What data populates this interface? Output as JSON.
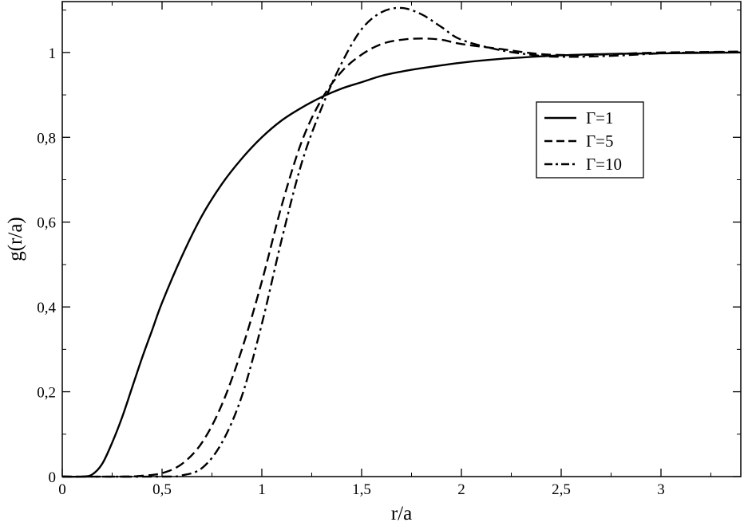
{
  "chart_data": {
    "type": "line",
    "title": "",
    "xlabel": "r/a",
    "ylabel": "g(r/a)",
    "xlim": [
      0,
      3.4
    ],
    "ylim": [
      0,
      1.12
    ],
    "grid": false,
    "legend_position": "upper-right",
    "x_ticks": [
      {
        "value": 0,
        "label": "0"
      },
      {
        "value": 0.5,
        "label": "0,5"
      },
      {
        "value": 1,
        "label": "1"
      },
      {
        "value": 1.5,
        "label": "1,5"
      },
      {
        "value": 2,
        "label": "2"
      },
      {
        "value": 2.5,
        "label": "2,5"
      },
      {
        "value": 3,
        "label": "3"
      }
    ],
    "y_ticks": [
      {
        "value": 0,
        "label": "0"
      },
      {
        "value": 0.2,
        "label": "0,2"
      },
      {
        "value": 0.4,
        "label": "0,4"
      },
      {
        "value": 0.6,
        "label": "0,6"
      },
      {
        "value": 0.8,
        "label": "0,8"
      },
      {
        "value": 1,
        "label": "1"
      }
    ],
    "series": [
      {
        "name": "Γ=1",
        "style": "solid",
        "x": [
          0,
          0.1,
          0.15,
          0.2,
          0.25,
          0.3,
          0.35,
          0.4,
          0.45,
          0.5,
          0.6,
          0.7,
          0.8,
          0.9,
          1.0,
          1.1,
          1.2,
          1.3,
          1.4,
          1.5,
          1.6,
          1.7,
          1.8,
          2.0,
          2.2,
          2.4,
          2.6,
          2.8,
          3.0,
          3.2,
          3.4
        ],
        "y": [
          0,
          0.0,
          0.005,
          0.03,
          0.08,
          0.14,
          0.21,
          0.28,
          0.345,
          0.41,
          0.52,
          0.615,
          0.69,
          0.75,
          0.8,
          0.84,
          0.87,
          0.895,
          0.915,
          0.93,
          0.945,
          0.955,
          0.963,
          0.976,
          0.985,
          0.991,
          0.995,
          0.997,
          0.998,
          0.999,
          1.0
        ]
      },
      {
        "name": "Γ=5",
        "style": "dashed",
        "x": [
          0,
          0.3,
          0.4,
          0.5,
          0.6,
          0.7,
          0.8,
          0.9,
          1.0,
          1.1,
          1.2,
          1.3,
          1.4,
          1.5,
          1.6,
          1.7,
          1.8,
          1.9,
          2.0,
          2.2,
          2.4,
          2.6,
          2.8,
          3.0,
          3.2,
          3.4
        ],
        "y": [
          0,
          0.0,
          0.002,
          0.008,
          0.03,
          0.08,
          0.17,
          0.3,
          0.46,
          0.64,
          0.79,
          0.89,
          0.955,
          0.995,
          1.02,
          1.03,
          1.033,
          1.03,
          1.02,
          1.008,
          0.996,
          0.994,
          0.997,
          1.0,
          1.001,
          1.002
        ]
      },
      {
        "name": "Γ=10",
        "style": "dashdot",
        "x": [
          0,
          0.5,
          0.6,
          0.7,
          0.8,
          0.9,
          1.0,
          1.1,
          1.2,
          1.3,
          1.4,
          1.5,
          1.6,
          1.7,
          1.8,
          1.9,
          2.0,
          2.2,
          2.4,
          2.5,
          2.6,
          2.8,
          3.0,
          3.2,
          3.4
        ],
        "y": [
          0,
          0.0,
          0.003,
          0.02,
          0.08,
          0.19,
          0.36,
          0.56,
          0.74,
          0.87,
          0.975,
          1.055,
          1.095,
          1.105,
          1.09,
          1.06,
          1.03,
          1.005,
          0.992,
          0.99,
          0.99,
          0.993,
          0.998,
          1.0,
          1.002
        ]
      }
    ]
  }
}
